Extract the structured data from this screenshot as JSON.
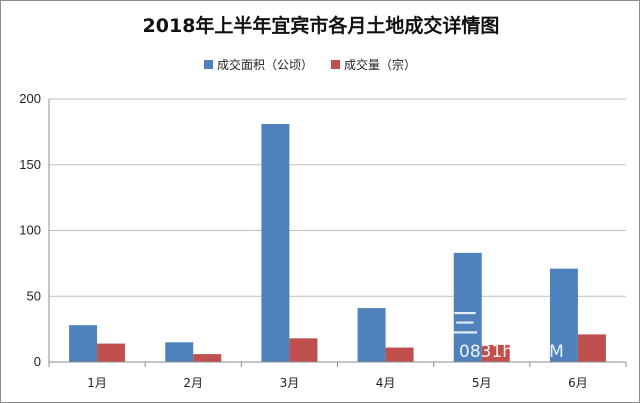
{
  "chart_data": {
    "type": "bar",
    "title": "2018年上半年宜宾市各月土地成交详情图",
    "categories": [
      "1月",
      "2月",
      "3月",
      "4月",
      "5月",
      "6月"
    ],
    "series": [
      {
        "name": "成交面积（公顷）",
        "color": "#4f81bd",
        "values": [
          28,
          15,
          181,
          41,
          83,
          71
        ]
      },
      {
        "name": "成交量（宗）",
        "color": "#c0504d",
        "values": [
          14,
          6,
          18,
          11,
          13,
          21
        ]
      }
    ],
    "yticks": [
      0,
      50,
      100,
      150,
      200
    ],
    "ylim": [
      0,
      200
    ],
    "grid": true,
    "legend_position": "top-center"
  },
  "watermark": {
    "line1": "三 产网",
    "line2": "0831h  .COM"
  }
}
